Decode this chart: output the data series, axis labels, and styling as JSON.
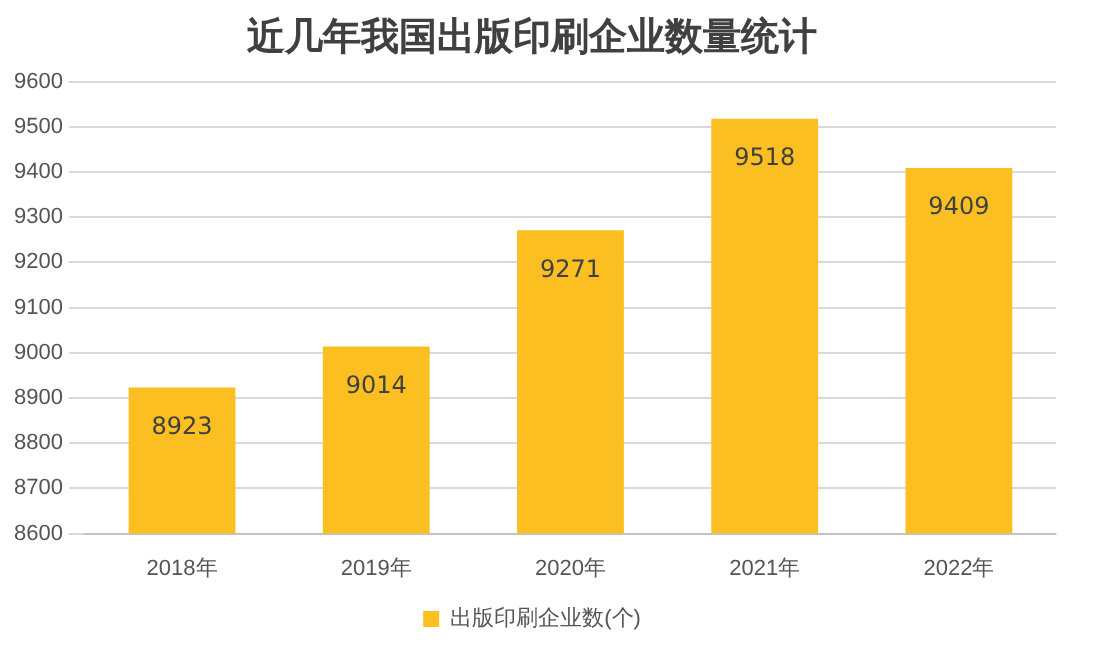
{
  "chart_data": {
    "type": "bar",
    "title": "近几年我国出版印刷企业数量统计",
    "categories": [
      "2018年",
      "2019年",
      "2020年",
      "2021年",
      "2022年"
    ],
    "series": [
      {
        "name": "出版印刷企业数(个)",
        "color": "#fbbf22",
        "values": [
          8923,
          9014,
          9271,
          9518,
          9409
        ]
      }
    ],
    "ylim": [
      8600,
      9600
    ],
    "yticks": [
      8600,
      8700,
      8800,
      8900,
      9000,
      9100,
      9200,
      9300,
      9400,
      9500,
      9600
    ],
    "grid": "y",
    "legend": "bottom",
    "data_labels": true
  }
}
